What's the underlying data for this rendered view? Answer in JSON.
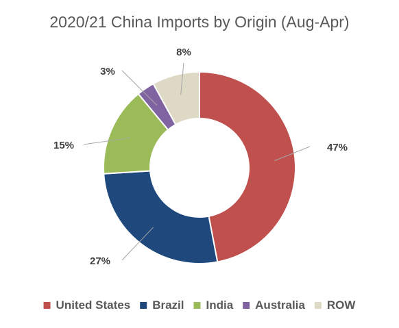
{
  "chart_data": {
    "type": "pie",
    "variant": "donut",
    "title": "2020/21 China Imports by Origin (Aug-Apr)",
    "legend_position": "bottom",
    "series": [
      {
        "name": "United States",
        "value": 47,
        "label": "47%",
        "color": "#c0504d"
      },
      {
        "name": "Brazil",
        "value": 27,
        "label": "27%",
        "color": "#1f497d"
      },
      {
        "name": "India",
        "value": 15,
        "label": "15%",
        "color": "#9bbb59"
      },
      {
        "name": "Australia",
        "value": 3,
        "label": "3%",
        "color": "#8064a2"
      },
      {
        "name": "ROW",
        "value": 8,
        "label": "8%",
        "color": "#ddd9c4"
      }
    ]
  }
}
